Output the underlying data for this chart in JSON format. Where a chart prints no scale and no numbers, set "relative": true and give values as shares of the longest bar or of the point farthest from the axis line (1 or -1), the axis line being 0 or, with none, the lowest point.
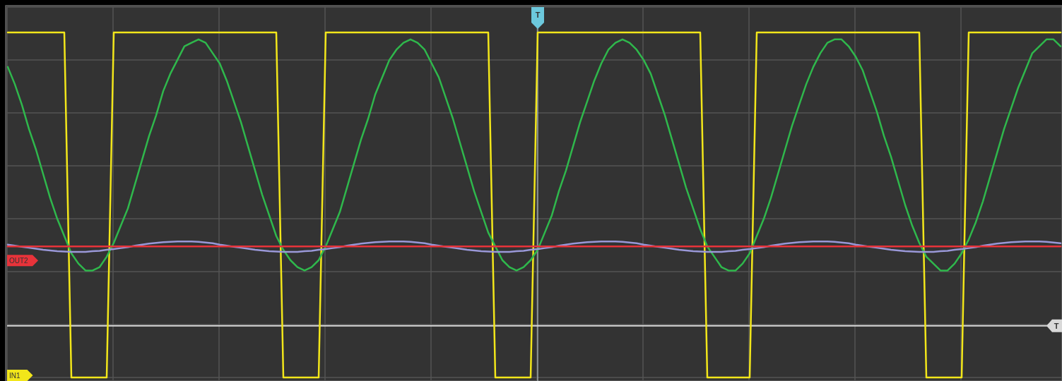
{
  "chart_data": {
    "type": "line",
    "relative": true,
    "grid": true,
    "legend": false,
    "categories": [
      null,
      null,
      null,
      null,
      null,
      null,
      null,
      null,
      null,
      null,
      null,
      null,
      null,
      null,
      null,
      null,
      null,
      null,
      null,
      null,
      null,
      null,
      null,
      null,
      null,
      null,
      null,
      null,
      null,
      null,
      null,
      null,
      null,
      null,
      null,
      null,
      null,
      null,
      null,
      null,
      null,
      null,
      null,
      null,
      null,
      null,
      null,
      null,
      null,
      null,
      null,
      null,
      null,
      null,
      null,
      null,
      null,
      null,
      null,
      null,
      null,
      null,
      null,
      null,
      null,
      null,
      null,
      null,
      null,
      null,
      null,
      null,
      null,
      null,
      null,
      null,
      null,
      null,
      null,
      null,
      null,
      null,
      null,
      null,
      null,
      null,
      null,
      null,
      null,
      null,
      null,
      null,
      null,
      null,
      null,
      null,
      null,
      null,
      null,
      null,
      null,
      null,
      null,
      null,
      null,
      null,
      null,
      null,
      null,
      null,
      null,
      null,
      null,
      null,
      null,
      null,
      null,
      null,
      null,
      null,
      null,
      null,
      null,
      null,
      null,
      null,
      null,
      null,
      null,
      null,
      null,
      null,
      null,
      null,
      null,
      null,
      null,
      null,
      null,
      null,
      null,
      null,
      null,
      null,
      null,
      null,
      null,
      null,
      null,
      null
    ],
    "series": [
      {
        "name": "IN1",
        "color": "#f2e61a",
        "values": [
          1,
          1,
          1,
          1,
          1,
          1,
          1,
          1,
          1,
          0,
          0,
          0,
          0,
          0,
          0,
          1,
          1,
          1,
          1,
          1,
          1,
          1,
          1,
          1,
          1,
          1,
          1,
          1,
          1,
          1,
          1,
          1,
          1,
          1,
          1,
          1,
          1,
          1,
          1,
          0,
          0,
          0,
          0,
          0,
          0,
          1,
          1,
          1,
          1,
          1,
          1,
          1,
          1,
          1,
          1,
          1,
          1,
          1,
          1,
          1,
          1,
          1,
          1,
          1,
          1,
          1,
          1,
          1,
          1,
          0,
          0,
          0,
          0,
          0,
          0,
          1,
          1,
          1,
          1,
          1,
          1,
          1,
          1,
          1,
          1,
          1,
          1,
          1,
          1,
          1,
          1,
          1,
          1,
          1,
          1,
          1,
          1,
          1,
          1,
          0,
          0,
          0,
          0,
          0,
          0,
          0,
          1,
          1,
          1,
          1,
          1,
          1,
          1,
          1,
          1,
          1,
          1,
          1,
          1,
          1,
          1,
          1,
          1,
          1,
          1,
          1,
          1,
          1,
          1,
          1,
          0,
          0,
          0,
          0,
          0,
          0,
          1,
          1,
          1,
          1,
          1,
          1,
          1,
          1,
          1,
          1,
          1,
          1,
          1,
          1
        ]
      },
      {
        "color": "#2fb84c",
        "values": [
          0.9,
          0.85,
          0.79,
          0.72,
          0.66,
          0.59,
          0.52,
          0.46,
          0.41,
          0.36,
          0.33,
          0.31,
          0.31,
          0.32,
          0.35,
          0.39,
          0.44,
          0.49,
          0.56,
          0.63,
          0.7,
          0.76,
          0.83,
          0.88,
          0.92,
          0.96,
          0.97,
          0.98,
          0.97,
          0.94,
          0.91,
          0.86,
          0.8,
          0.74,
          0.67,
          0.6,
          0.53,
          0.47,
          0.41,
          0.37,
          0.34,
          0.32,
          0.31,
          0.32,
          0.34,
          0.38,
          0.43,
          0.48,
          0.55,
          0.62,
          0.69,
          0.75,
          0.82,
          0.87,
          0.92,
          0.95,
          0.97,
          0.98,
          0.97,
          0.95,
          0.91,
          0.87,
          0.81,
          0.75,
          0.68,
          0.61,
          0.54,
          0.48,
          0.42,
          0.38,
          0.34,
          0.32,
          0.31,
          0.32,
          0.34,
          0.37,
          0.42,
          0.47,
          0.54,
          0.6,
          0.67,
          0.74,
          0.8,
          0.86,
          0.91,
          0.95,
          0.97,
          0.98,
          0.97,
          0.95,
          0.92,
          0.88,
          0.82,
          0.76,
          0.69,
          0.62,
          0.55,
          0.49,
          0.43,
          0.38,
          0.35,
          0.32,
          0.31,
          0.31,
          0.33,
          0.36,
          0.41,
          0.46,
          0.52,
          0.59,
          0.66,
          0.73,
          0.79,
          0.85,
          0.9,
          0.94,
          0.97,
          0.98,
          0.98,
          0.96,
          0.93,
          0.89,
          0.83,
          0.77,
          0.7,
          0.64,
          0.57,
          0.5,
          0.44,
          0.39,
          0.35,
          0.33,
          0.31,
          0.31,
          0.33,
          0.36,
          0.4,
          0.45,
          0.51,
          0.58,
          0.65,
          0.72,
          0.78,
          0.84,
          0.89,
          0.94,
          0.96,
          0.98,
          0.98,
          0.96
        ]
      },
      {
        "color": "#9a98d8",
        "values": [
          0.385,
          0.382,
          0.379,
          0.376,
          0.373,
          0.37,
          0.368,
          0.366,
          0.365,
          0.364,
          0.364,
          0.364,
          0.366,
          0.367,
          0.37,
          0.372,
          0.375,
          0.378,
          0.382,
          0.385,
          0.388,
          0.39,
          0.392,
          0.393,
          0.394,
          0.394,
          0.394,
          0.393,
          0.391,
          0.389,
          0.385,
          0.382,
          0.379,
          0.376,
          0.373,
          0.37,
          0.368,
          0.366,
          0.365,
          0.364,
          0.364,
          0.364,
          0.366,
          0.367,
          0.37,
          0.372,
          0.375,
          0.378,
          0.382,
          0.385,
          0.388,
          0.39,
          0.392,
          0.393,
          0.394,
          0.394,
          0.394,
          0.393,
          0.391,
          0.389,
          0.385,
          0.382,
          0.379,
          0.376,
          0.373,
          0.37,
          0.368,
          0.366,
          0.365,
          0.364,
          0.364,
          0.364,
          0.366,
          0.367,
          0.37,
          0.372,
          0.375,
          0.378,
          0.382,
          0.385,
          0.388,
          0.39,
          0.392,
          0.393,
          0.394,
          0.394,
          0.394,
          0.393,
          0.391,
          0.389,
          0.385,
          0.382,
          0.379,
          0.376,
          0.373,
          0.37,
          0.368,
          0.366,
          0.365,
          0.364,
          0.364,
          0.364,
          0.366,
          0.367,
          0.37,
          0.372,
          0.375,
          0.378,
          0.382,
          0.385,
          0.388,
          0.39,
          0.392,
          0.393,
          0.394,
          0.394,
          0.394,
          0.393,
          0.391,
          0.389,
          0.385,
          0.382,
          0.379,
          0.376,
          0.373,
          0.37,
          0.368,
          0.366,
          0.365,
          0.364,
          0.364,
          0.364,
          0.366,
          0.367,
          0.37,
          0.372,
          0.375,
          0.378,
          0.382,
          0.385,
          0.388,
          0.39,
          0.392,
          0.393,
          0.394,
          0.394,
          0.394,
          0.393,
          0.391,
          0.389
        ]
      },
      {
        "name": "OUT2",
        "color": "#e8333a",
        "values": [
          0.38,
          0.38,
          0.38,
          0.38,
          0.38,
          0.38,
          0.38,
          0.38,
          0.38,
          0.38,
          0.38,
          0.38,
          0.38,
          0.38,
          0.38,
          0.38,
          0.38,
          0.38,
          0.38,
          0.38,
          0.38,
          0.38,
          0.38,
          0.38,
          0.38,
          0.38,
          0.38,
          0.38,
          0.38,
          0.38,
          0.38,
          0.38,
          0.38,
          0.38,
          0.38,
          0.38,
          0.38,
          0.38,
          0.38,
          0.38,
          0.38,
          0.38,
          0.38,
          0.38,
          0.38,
          0.38,
          0.38,
          0.38,
          0.38,
          0.38,
          0.38,
          0.38,
          0.38,
          0.38,
          0.38,
          0.38,
          0.38,
          0.38,
          0.38,
          0.38,
          0.38,
          0.38,
          0.38,
          0.38,
          0.38,
          0.38,
          0.38,
          0.38,
          0.38,
          0.38,
          0.38,
          0.38,
          0.38,
          0.38,
          0.38,
          0.38,
          0.38,
          0.38,
          0.38,
          0.38,
          0.38,
          0.38,
          0.38,
          0.38,
          0.38,
          0.38,
          0.38,
          0.38,
          0.38,
          0.38,
          0.38,
          0.38,
          0.38,
          0.38,
          0.38,
          0.38,
          0.38,
          0.38,
          0.38,
          0.38,
          0.38,
          0.38,
          0.38,
          0.38,
          0.38,
          0.38,
          0.38,
          0.38,
          0.38,
          0.38,
          0.38,
          0.38,
          0.38,
          0.38,
          0.38,
          0.38,
          0.38,
          0.38,
          0.38,
          0.38,
          0.38,
          0.38,
          0.38,
          0.38,
          0.38,
          0.38,
          0.38,
          0.38,
          0.38,
          0.38,
          0.38,
          0.38,
          0.38,
          0.38,
          0.38,
          0.38,
          0.38,
          0.38,
          0.38,
          0.38,
          0.38,
          0.38,
          0.38,
          0.38,
          0.38,
          0.38,
          0.38,
          0.38,
          0.38,
          0.38
        ]
      }
    ],
    "ref_lines": [
      {
        "axis": "y",
        "value": 0.15,
        "label": "T",
        "color": "#d9d9d9"
      }
    ],
    "annotations": [
      "T"
    ]
  }
}
